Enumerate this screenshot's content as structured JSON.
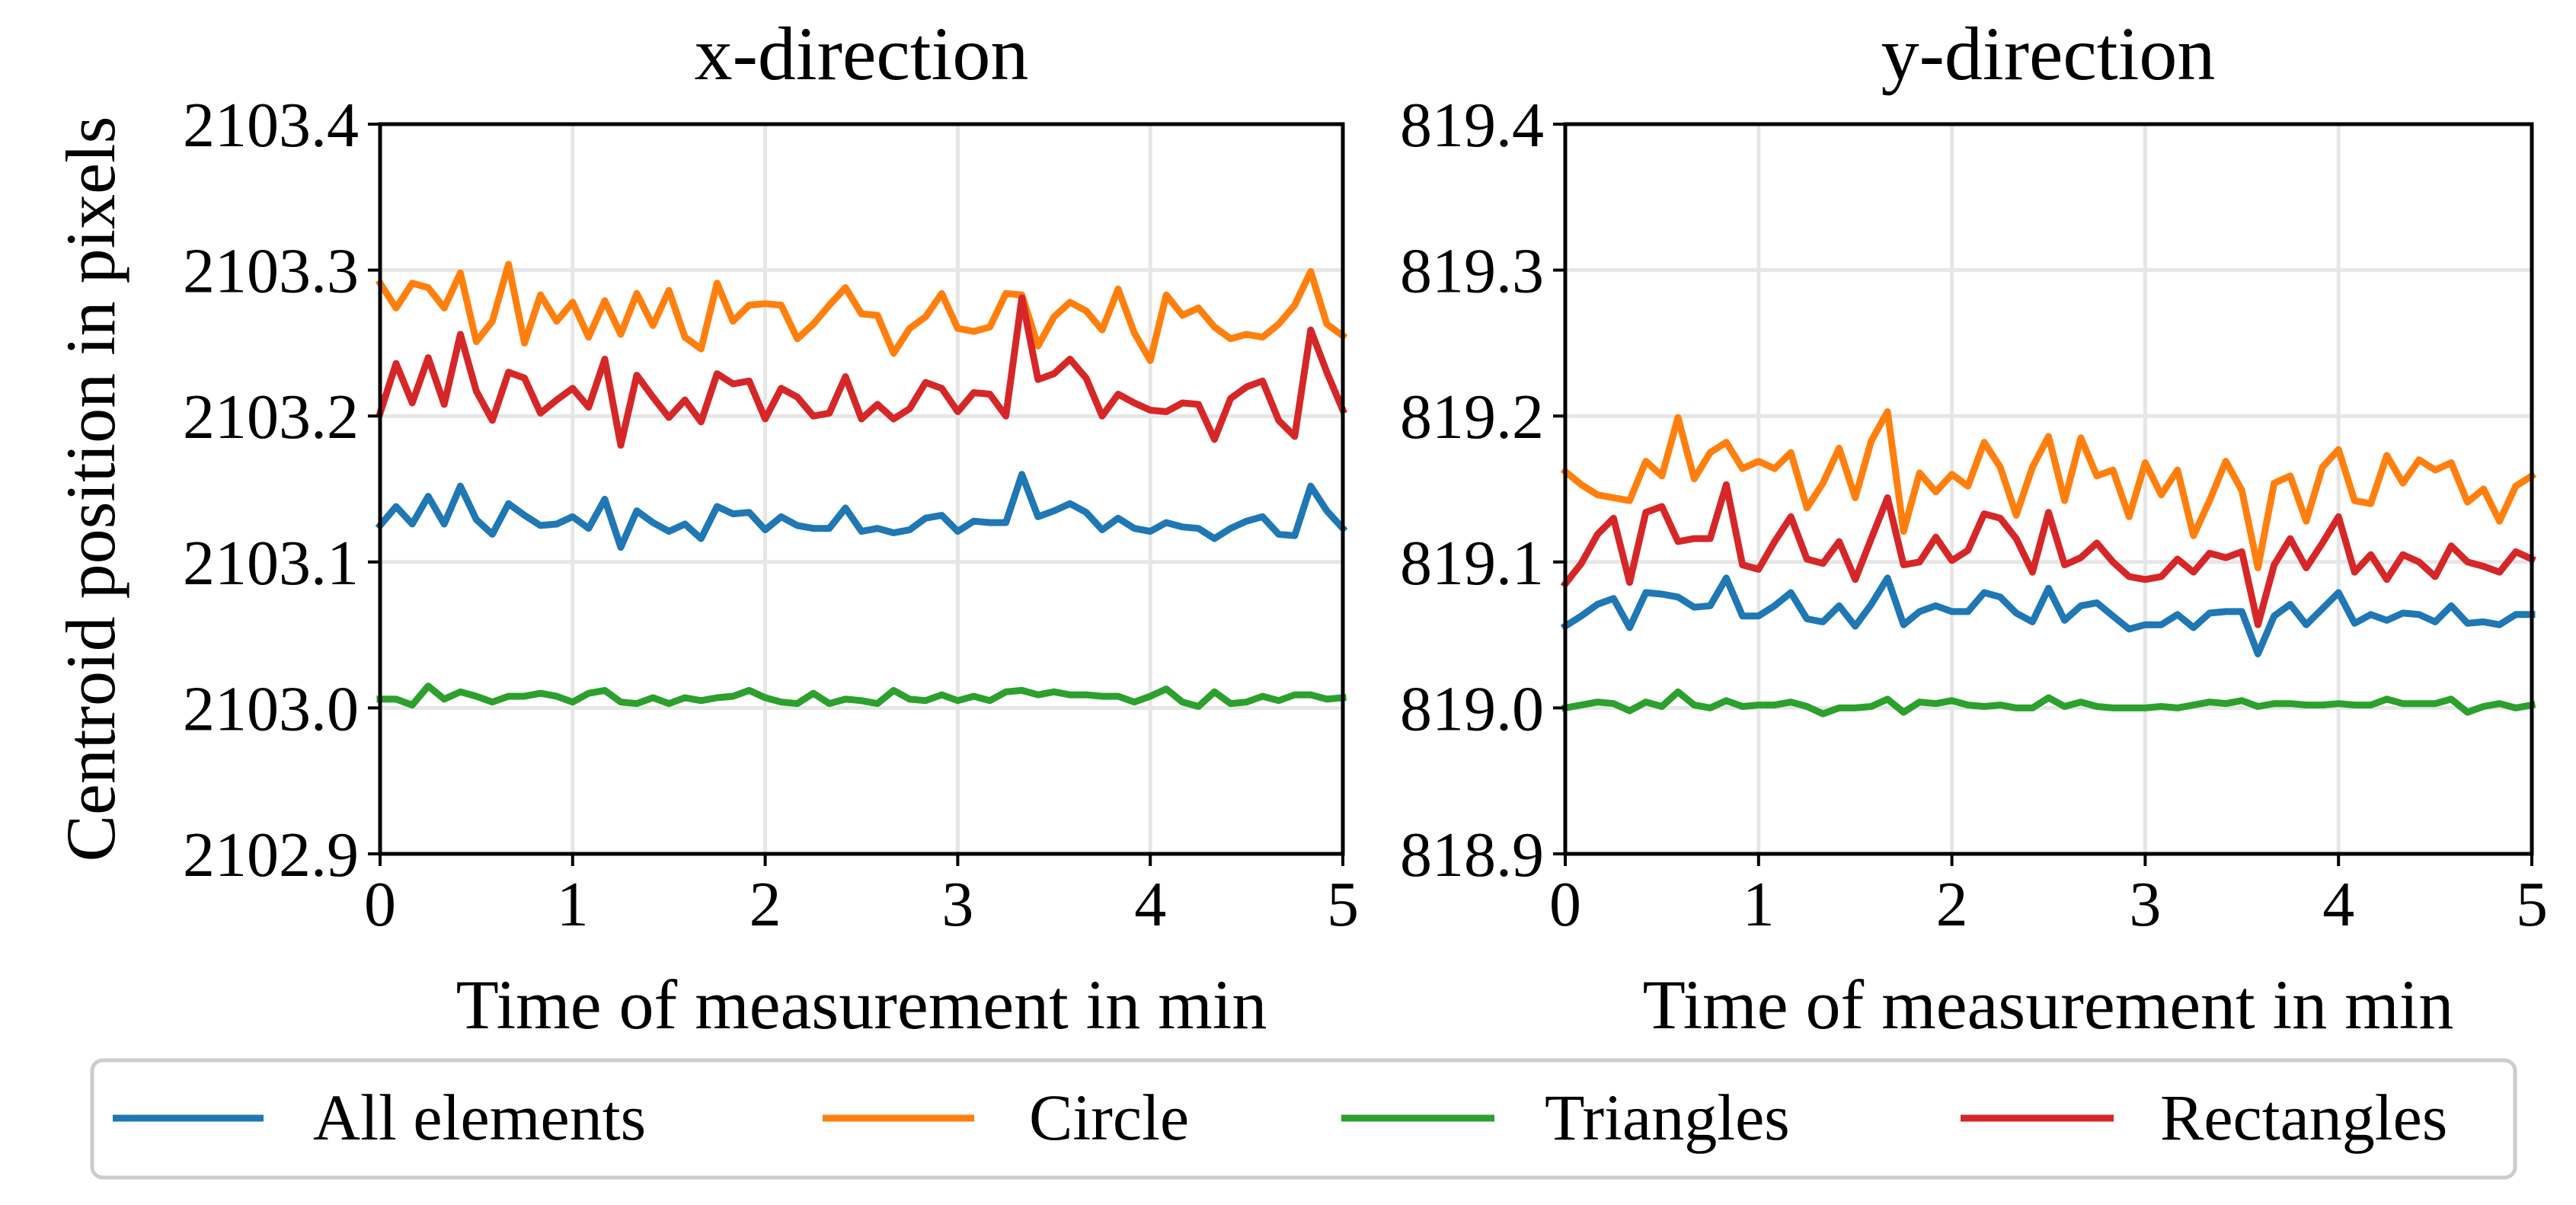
{
  "figure": {
    "ylabel": "Centroid position in pixels",
    "legend": [
      {
        "label": "All elements",
        "color": "#1f77b4"
      },
      {
        "label": "Circle",
        "color": "#ff7f0e"
      },
      {
        "label": "Triangles",
        "color": "#2ca02c"
      },
      {
        "label": "Rectangles",
        "color": "#d62728"
      }
    ]
  },
  "chart_data": [
    {
      "type": "line",
      "title": "x-direction",
      "xlabel": "Time of measurement in min",
      "ylabel": "Centroid position in pixels",
      "xlim": [
        0,
        5
      ],
      "ylim": [
        2102.9,
        2103.4
      ],
      "xticks": [
        "0",
        "1",
        "2",
        "3",
        "4",
        "5"
      ],
      "yticks": [
        "2102.9",
        "2103.0",
        "2103.1",
        "2103.2",
        "2103.3",
        "2103.4"
      ],
      "grid": true,
      "legend_position": "bottom",
      "x": [
        0,
        0.083,
        0.167,
        0.25,
        0.333,
        0.417,
        0.5,
        0.583,
        0.667,
        0.75,
        0.833,
        0.917,
        1,
        1.083,
        1.167,
        1.25,
        1.333,
        1.417,
        1.5,
        1.583,
        1.667,
        1.75,
        1.833,
        1.917,
        2,
        2.083,
        2.167,
        2.25,
        2.333,
        2.417,
        2.5,
        2.583,
        2.667,
        2.75,
        2.833,
        2.917,
        3,
        3.083,
        3.167,
        3.25,
        3.333,
        3.417,
        3.5,
        3.583,
        3.667,
        3.75,
        3.833,
        3.917,
        4,
        4.083,
        4.167,
        4.25,
        4.333,
        4.417,
        4.5,
        4.583,
        4.667,
        4.75,
        4.833,
        4.917,
        5
      ],
      "series": [
        {
          "name": "All elements",
          "color": "#1f77b4",
          "values": [
            2103.125,
            2103.138,
            2103.126,
            2103.145,
            2103.126,
            2103.152,
            2103.129,
            2103.119,
            2103.14,
            2103.132,
            2103.125,
            2103.126,
            2103.131,
            2103.123,
            2103.143,
            2103.11,
            2103.135,
            2103.127,
            2103.121,
            2103.126,
            2103.116,
            2103.138,
            2103.133,
            2103.134,
            2103.122,
            2103.131,
            2103.125,
            2103.123,
            2103.123,
            2103.137,
            2103.121,
            2103.123,
            2103.12,
            2103.122,
            2103.13,
            2103.132,
            2103.121,
            2103.128,
            2103.127,
            2103.127,
            2103.16,
            2103.131,
            2103.135,
            2103.14,
            2103.134,
            2103.122,
            2103.13,
            2103.123,
            2103.121,
            2103.127,
            2103.124,
            2103.123,
            2103.116,
            2103.123,
            2103.128,
            2103.131,
            2103.119,
            2103.118,
            2103.152,
            2103.135,
            2103.123
          ]
        },
        {
          "name": "Circle",
          "color": "#ff7f0e",
          "values": [
            2103.291,
            2103.274,
            2103.291,
            2103.288,
            2103.274,
            2103.298,
            2103.251,
            2103.265,
            2103.304,
            2103.25,
            2103.283,
            2103.265,
            2103.278,
            2103.254,
            2103.279,
            2103.256,
            2103.284,
            2103.262,
            2103.286,
            2103.254,
            2103.246,
            2103.291,
            2103.265,
            2103.276,
            2103.277,
            2103.276,
            2103.253,
            2103.263,
            2103.276,
            2103.288,
            2103.27,
            2103.269,
            2103.243,
            2103.26,
            2103.268,
            2103.284,
            2103.26,
            2103.258,
            2103.261,
            2103.284,
            2103.283,
            2103.248,
            2103.268,
            2103.278,
            2103.272,
            2103.259,
            2103.287,
            2103.257,
            2103.238,
            2103.283,
            2103.269,
            2103.274,
            2103.261,
            2103.253,
            2103.256,
            2103.254,
            2103.263,
            2103.276,
            2103.299,
            2103.263,
            2103.255
          ]
        },
        {
          "name": "Triangles",
          "color": "#2ca02c",
          "values": [
            2103.006,
            2103.006,
            2103.002,
            2103.015,
            2103.006,
            2103.011,
            2103.008,
            2103.004,
            2103.008,
            2103.008,
            2103.01,
            2103.008,
            2103.004,
            2103.01,
            2103.012,
            2103.004,
            2103.003,
            2103.007,
            2103.003,
            2103.007,
            2103.005,
            2103.007,
            2103.008,
            2103.012,
            2103.007,
            2103.004,
            2103.003,
            2103.01,
            2103.003,
            2103.006,
            2103.005,
            2103.003,
            2103.012,
            2103.006,
            2103.005,
            2103.009,
            2103.005,
            2103.008,
            2103.005,
            2103.011,
            2103.012,
            2103.009,
            2103.011,
            2103.009,
            2103.009,
            2103.008,
            2103.008,
            2103.004,
            2103.008,
            2103.013,
            2103.004,
            2103.001,
            2103.011,
            2103.003,
            2103.004,
            2103.008,
            2103.005,
            2103.009,
            2103.009,
            2103.006,
            2103.007
          ]
        },
        {
          "name": "Rectangles",
          "color": "#d62728",
          "values": [
            2103.202,
            2103.236,
            2103.209,
            2103.24,
            2103.208,
            2103.256,
            2103.217,
            2103.197,
            2103.23,
            2103.226,
            2103.202,
            2103.211,
            2103.219,
            2103.206,
            2103.239,
            2103.18,
            2103.228,
            2103.213,
            2103.199,
            2103.211,
            2103.196,
            2103.229,
            2103.222,
            2103.224,
            2103.198,
            2103.219,
            2103.213,
            2103.2,
            2103.202,
            2103.227,
            2103.198,
            2103.208,
            2103.198,
            2103.205,
            2103.223,
            2103.219,
            2103.203,
            2103.216,
            2103.215,
            2103.2,
            2103.281,
            2103.225,
            2103.229,
            2103.239,
            2103.226,
            2103.2,
            2103.215,
            2103.209,
            2103.204,
            2103.203,
            2103.209,
            2103.208,
            2103.184,
            2103.212,
            2103.22,
            2103.224,
            2103.197,
            2103.186,
            2103.259,
            2103.23,
            2103.204
          ]
        }
      ]
    },
    {
      "type": "line",
      "title": "y-direction",
      "xlabel": "Time of measurement in min",
      "ylabel": "",
      "xlim": [
        0,
        5
      ],
      "ylim": [
        818.9,
        819.4
      ],
      "xticks": [
        "0",
        "1",
        "2",
        "3",
        "4",
        "5"
      ],
      "yticks": [
        "818.9",
        "819.0",
        "819.1",
        "819.2",
        "819.3",
        "819.4"
      ],
      "grid": true,
      "legend_position": "bottom",
      "x": [
        0,
        0.083,
        0.167,
        0.25,
        0.333,
        0.417,
        0.5,
        0.583,
        0.667,
        0.75,
        0.833,
        0.917,
        1,
        1.083,
        1.167,
        1.25,
        1.333,
        1.417,
        1.5,
        1.583,
        1.667,
        1.75,
        1.833,
        1.917,
        2,
        2.083,
        2.167,
        2.25,
        2.333,
        2.417,
        2.5,
        2.583,
        2.667,
        2.75,
        2.833,
        2.917,
        3,
        3.083,
        3.167,
        3.25,
        3.333,
        3.417,
        3.5,
        3.583,
        3.667,
        3.75,
        3.833,
        3.917,
        4,
        4.083,
        4.167,
        4.25,
        4.333,
        4.417,
        4.5,
        4.583,
        4.667,
        4.75,
        4.833,
        4.917,
        5
      ],
      "series": [
        {
          "name": "All elements",
          "color": "#1f77b4",
          "values": [
            819.056,
            819.063,
            819.071,
            819.075,
            819.055,
            819.079,
            819.078,
            819.076,
            819.069,
            819.07,
            819.089,
            819.063,
            819.063,
            819.07,
            819.079,
            819.061,
            819.059,
            819.07,
            819.056,
            819.071,
            819.089,
            819.057,
            819.066,
            819.07,
            819.066,
            819.066,
            819.079,
            819.076,
            819.065,
            819.059,
            819.082,
            819.06,
            819.07,
            819.072,
            819.063,
            819.054,
            819.057,
            819.057,
            819.064,
            819.055,
            819.065,
            819.066,
            819.066,
            819.037,
            819.063,
            819.071,
            819.057,
            819.068,
            819.079,
            819.058,
            819.064,
            819.06,
            819.065,
            819.064,
            819.059,
            819.07,
            819.058,
            819.059,
            819.057,
            819.064,
            819.064
          ]
        },
        {
          "name": "Circle",
          "color": "#ff7f0e",
          "values": [
            819.162,
            819.153,
            819.146,
            819.144,
            819.142,
            819.169,
            819.159,
            819.199,
            819.157,
            819.175,
            819.182,
            819.164,
            819.169,
            819.164,
            819.175,
            819.137,
            819.154,
            819.178,
            819.144,
            819.183,
            819.203,
            819.121,
            819.161,
            819.148,
            819.16,
            819.152,
            819.182,
            819.165,
            819.132,
            819.165,
            819.186,
            819.142,
            819.185,
            819.159,
            819.163,
            819.131,
            819.168,
            819.146,
            819.163,
            819.118,
            819.142,
            819.169,
            819.149,
            819.096,
            819.154,
            819.159,
            819.128,
            819.165,
            819.177,
            819.142,
            819.14,
            819.173,
            819.154,
            819.17,
            819.163,
            819.168,
            819.141,
            819.15,
            819.128,
            819.152,
            819.159
          ]
        },
        {
          "name": "Triangles",
          "color": "#2ca02c",
          "values": [
            819.0,
            819.002,
            819.004,
            819.003,
            818.998,
            819.004,
            819.001,
            819.011,
            819.002,
            819.0,
            819.005,
            819.001,
            819.002,
            819.002,
            819.004,
            819.001,
            818.996,
            819.0,
            819.0,
            819.001,
            819.006,
            818.997,
            819.004,
            819.003,
            819.005,
            819.002,
            819.001,
            819.002,
            819.0,
            819.0,
            819.007,
            819.001,
            819.004,
            819.001,
            819.0,
            819.0,
            819.0,
            819.001,
            819.0,
            819.002,
            819.004,
            819.003,
            819.005,
            819.001,
            819.003,
            819.003,
            819.002,
            819.002,
            819.003,
            819.002,
            819.002,
            819.006,
            819.003,
            819.003,
            819.003,
            819.006,
            818.997,
            819.001,
            819.003,
            819.0,
            819.002
          ]
        },
        {
          "name": "Rectangles",
          "color": "#d62728",
          "values": [
            819.085,
            819.099,
            819.119,
            819.13,
            819.086,
            819.134,
            819.138,
            819.114,
            819.116,
            819.116,
            819.153,
            819.098,
            819.095,
            819.114,
            819.131,
            819.102,
            819.099,
            819.114,
            819.088,
            819.116,
            819.144,
            819.098,
            819.1,
            819.117,
            819.101,
            819.108,
            819.133,
            819.13,
            819.116,
            819.093,
            819.134,
            819.098,
            819.103,
            819.113,
            819.1,
            819.09,
            819.088,
            819.09,
            819.102,
            819.093,
            819.106,
            819.103,
            819.107,
            819.057,
            819.098,
            819.116,
            819.096,
            819.113,
            819.131,
            819.093,
            819.105,
            819.088,
            819.105,
            819.1,
            819.09,
            819.111,
            819.1,
            819.097,
            819.093,
            819.107,
            819.102
          ]
        }
      ]
    }
  ]
}
